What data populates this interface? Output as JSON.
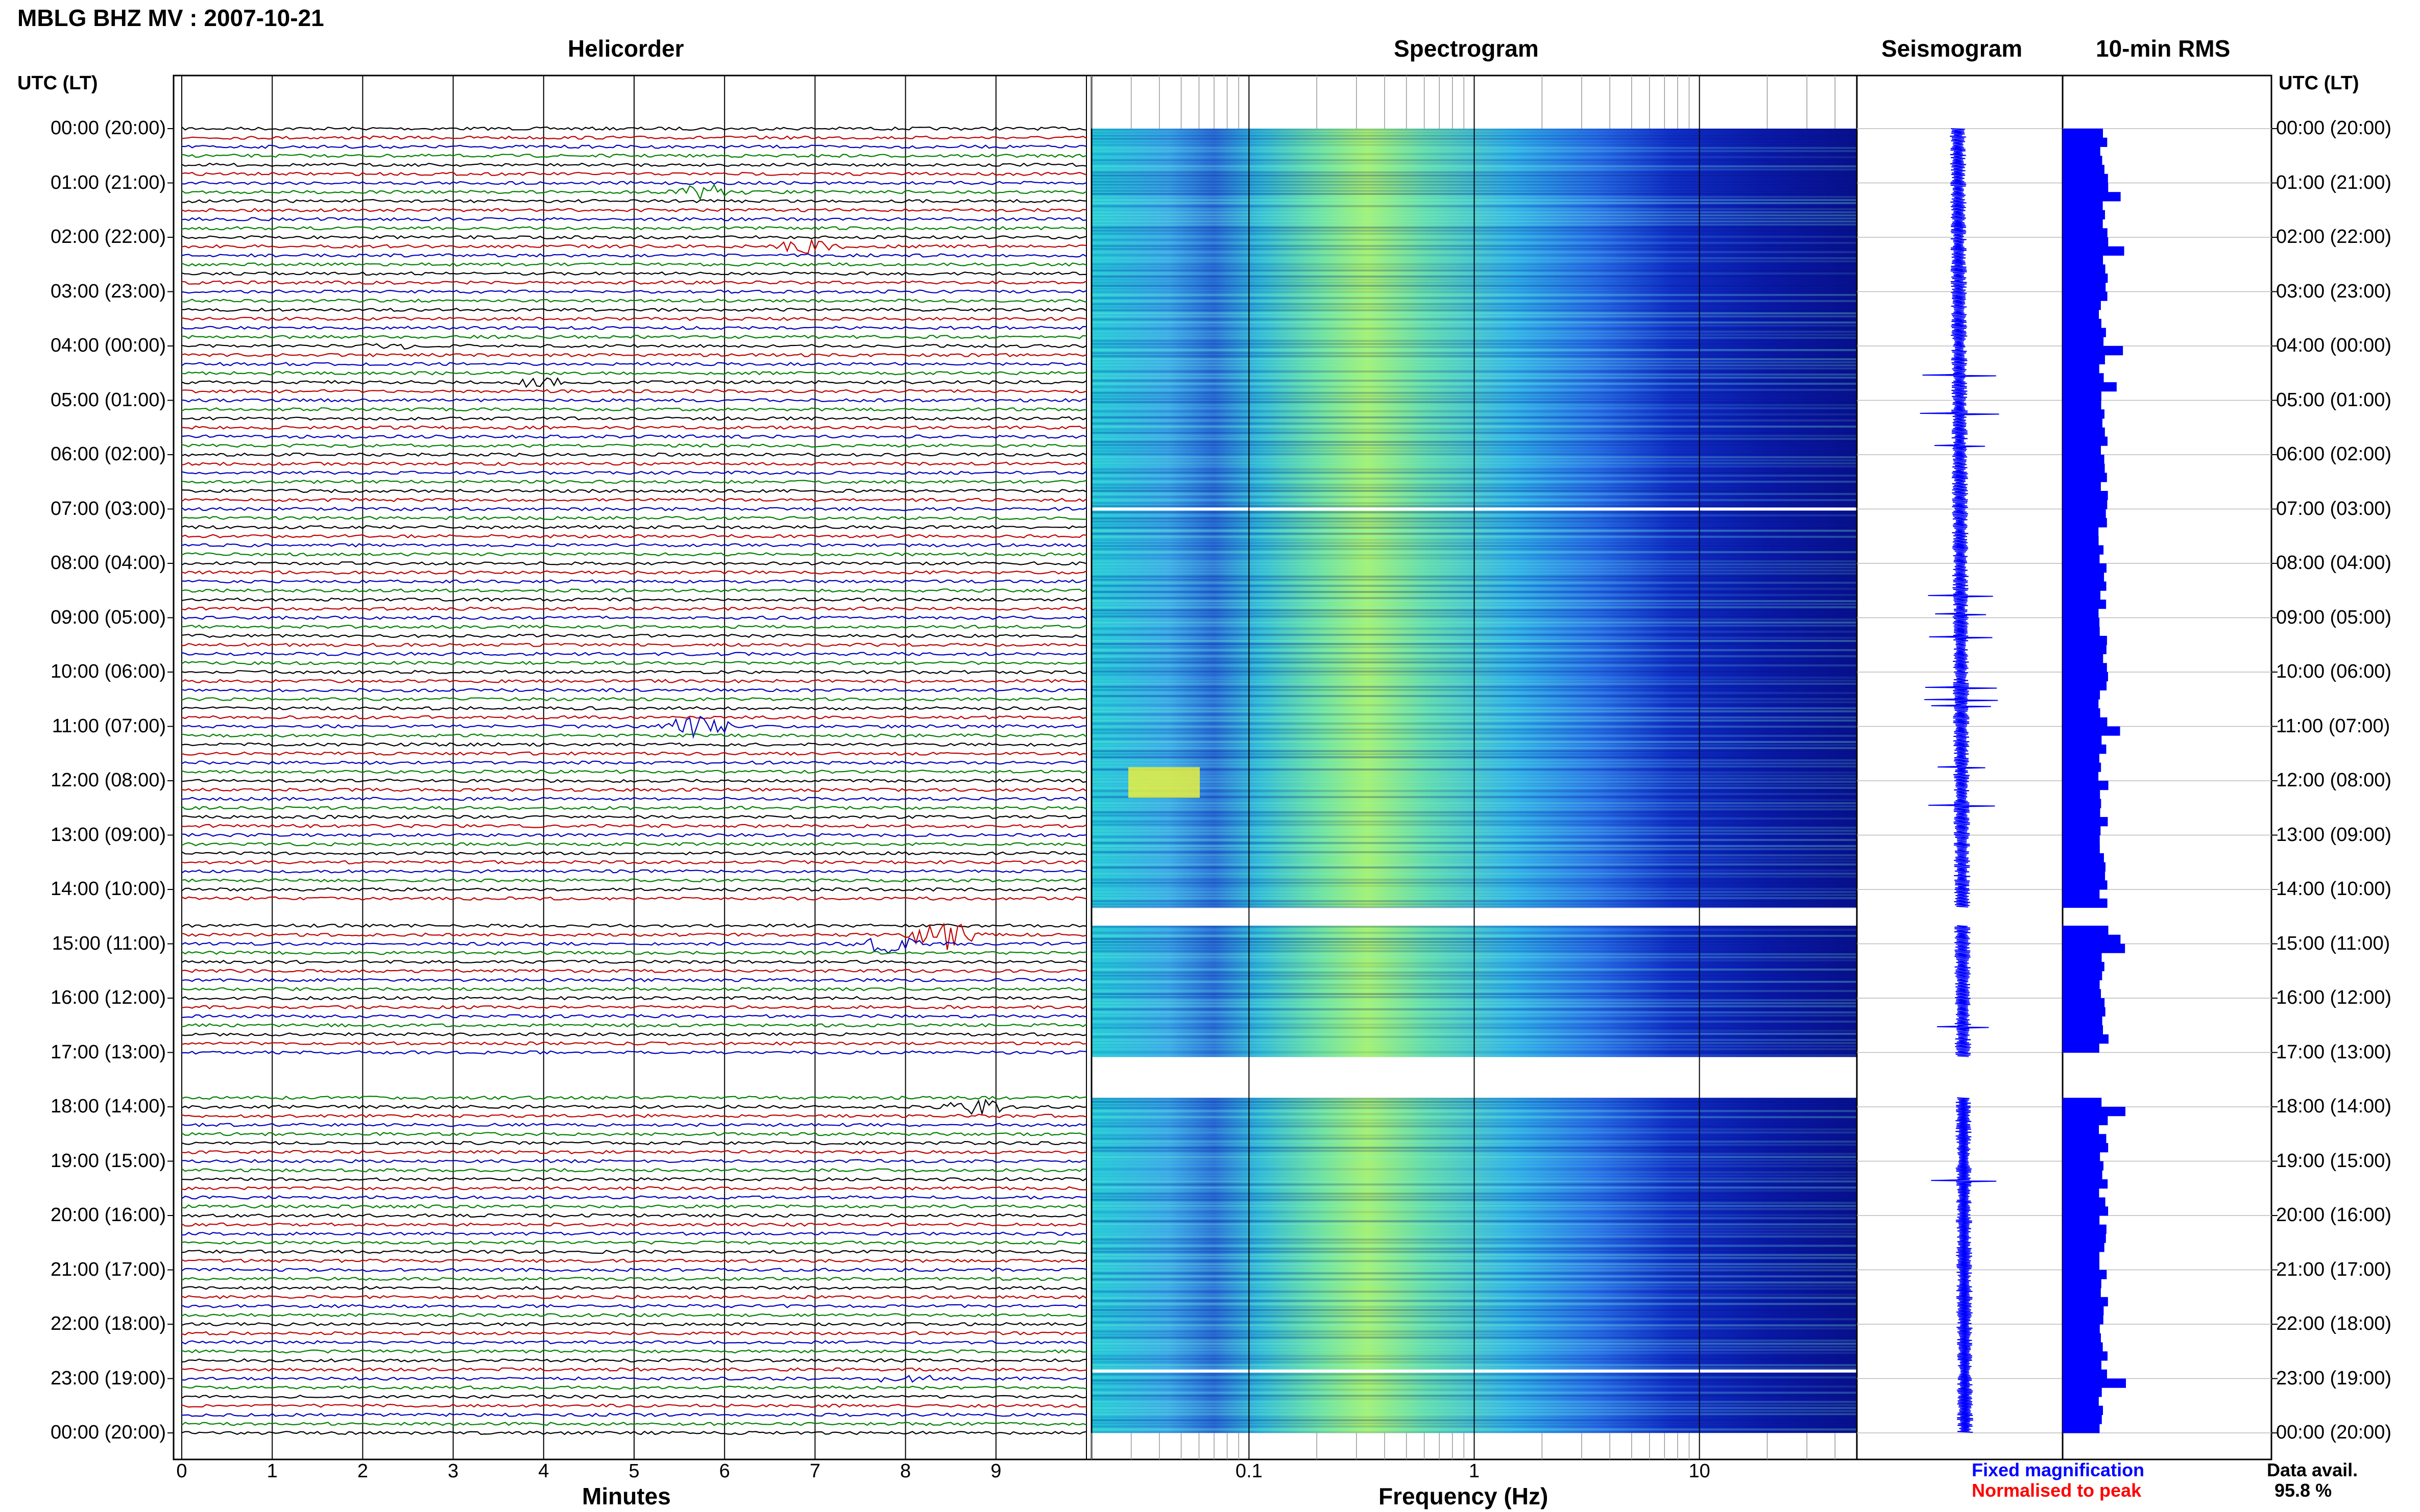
{
  "page_title": "MBLG BHZ MV : 2007-10-21",
  "panels": {
    "helicorder": "Helicorder",
    "spectrogram": "Spectrogram",
    "seismogram": "Seismogram",
    "rms": "10-min RMS"
  },
  "axis": {
    "time_label_left": "UTC (LT)",
    "time_label_right": "UTC (LT)",
    "minutes_label": "Minutes",
    "frequency_label": "Frequency (Hz)"
  },
  "legend": {
    "fixed": "Fixed magnification",
    "normalised": "Normalised to peak",
    "data_avail_label": "Data avail.",
    "data_avail_value": "95.8 %"
  },
  "colors": {
    "trace_cycle": [
      "#000000",
      "#c00000",
      "#0000c0",
      "#008000"
    ],
    "legend_fixed": "#0000ff",
    "legend_normalised": "#ff0000",
    "rms_bar": "#0000ff",
    "spectrogram_low": "#00008b",
    "spectrogram_high": "#ffff40"
  },
  "chart_data": [
    {
      "type": "line",
      "panel": "Helicorder",
      "y_ticks": [
        "00:00 (20:00)",
        "01:00 (21:00)",
        "02:00 (22:00)",
        "03:00 (23:00)",
        "04:00 (00:00)",
        "05:00 (01:00)",
        "06:00 (02:00)",
        "07:00 (03:00)",
        "08:00 (04:00)",
        "09:00 (05:00)",
        "10:00 (06:00)",
        "11:00 (07:00)",
        "12:00 (08:00)",
        "13:00 (09:00)",
        "14:00 (10:00)",
        "15:00 (11:00)",
        "16:00 (12:00)",
        "17:00 (13:00)",
        "18:00 (14:00)",
        "19:00 (15:00)",
        "20:00 (16:00)",
        "21:00 (17:00)",
        "22:00 (18:00)",
        "23:00 (19:00)",
        "00:00 (20:00)"
      ],
      "x_ticks": [
        "0",
        "1",
        "2",
        "3",
        "4",
        "5",
        "6",
        "7",
        "8",
        "9"
      ],
      "xlabel": "Minutes",
      "xlim": [
        0,
        10
      ],
      "lines_per_hour": 6,
      "gaps": [
        {
          "from_utc": "14:20",
          "to_utc": "14:40"
        },
        {
          "from_utc": "17:05",
          "to_utc": "17:50"
        }
      ],
      "events": [
        {
          "line_utc": "01:10",
          "minute": 5.8,
          "amp": 0.5
        },
        {
          "line_utc": "02:10",
          "minute": 6.9,
          "amp": 0.6
        },
        {
          "line_utc": "04:00",
          "minute": 2.4,
          "amp": 0.3
        },
        {
          "line_utc": "04:40",
          "minute": 4.0,
          "amp": 0.4
        },
        {
          "line_utc": "11:00",
          "minute": 5.7,
          "amp": 0.9
        },
        {
          "line_utc": "14:50",
          "minute": 8.4,
          "amp": 1.2
        },
        {
          "line_utc": "15:00",
          "minute": 7.8,
          "amp": 0.8
        },
        {
          "line_utc": "18:00",
          "minute": 8.8,
          "amp": 0.6
        },
        {
          "line_utc": "23:00",
          "minute": 8.0,
          "amp": 0.3
        }
      ]
    },
    {
      "type": "heatmap",
      "panel": "Spectrogram",
      "xlabel": "Frequency (Hz)",
      "x_scale": "log",
      "xlim": [
        0.02,
        50
      ],
      "x_ticks": [
        "0.1",
        "1",
        "10"
      ],
      "x_tick_values": [
        0.1,
        1,
        10
      ]
    },
    {
      "type": "line",
      "panel": "Seismogram"
    },
    {
      "type": "bar",
      "panel": "10-min RMS",
      "orientation": "horizontal"
    }
  ]
}
